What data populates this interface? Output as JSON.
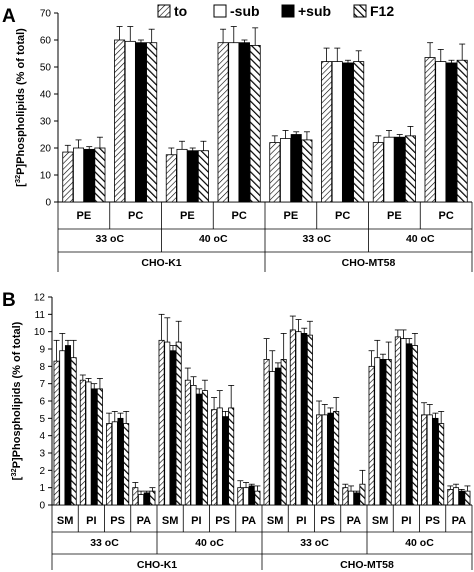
{
  "legend": {
    "position": "top",
    "entries": [
      {
        "label": "to",
        "pattern": "hatch"
      },
      {
        "label": "-sub",
        "pattern": "white"
      },
      {
        "label": "+sub",
        "pattern": "black"
      },
      {
        "label": "F12",
        "pattern": "hatch-bold"
      }
    ]
  },
  "colors": {
    "black": "#000000",
    "white": "#ffffff",
    "hatch": "#000000"
  },
  "chart_data": [
    {
      "panel": "A",
      "type": "bar",
      "ylabel_main": "Phospholipids (% of total)",
      "ylabel_bracket": "[",
      "ylabel_sup": "32",
      "ylabel_p": "P]",
      "ylim": [
        0,
        70
      ],
      "yticks": [
        "0",
        "10",
        "20",
        "30",
        "40",
        "50",
        "60",
        "70"
      ],
      "grid": false,
      "series": [
        {
          "name": "to",
          "values": [
            18.5,
            60,
            17.5,
            59,
            22,
            52,
            22,
            53.5
          ],
          "errors": [
            2.5,
            5,
            2.5,
            5,
            2.5,
            5,
            2.5,
            5.5
          ]
        },
        {
          "name": "-sub",
          "values": [
            20,
            59.5,
            19.5,
            59,
            23.5,
            52,
            24,
            52
          ],
          "errors": [
            3,
            5.5,
            3,
            6,
            3,
            5,
            2.5,
            4.5
          ]
        },
        {
          "name": "+sub",
          "values": [
            19.5,
            59,
            19,
            59,
            25,
            51.5,
            24,
            51.5
          ],
          "errors": [
            1,
            1,
            1,
            1,
            1,
            1,
            1,
            1
          ]
        },
        {
          "name": "F12",
          "values": [
            20,
            59,
            19,
            58,
            23,
            52,
            24.5,
            52.5
          ],
          "errors": [
            4,
            5,
            3.5,
            6.5,
            3,
            4,
            3.5,
            6
          ]
        }
      ],
      "categories": [
        "PE",
        "PC",
        "PE",
        "PC",
        "PE",
        "PC",
        "PE",
        "PC"
      ],
      "temperature_groups": [
        "33 oC",
        "40 oC",
        "33 oC",
        "40 oC"
      ],
      "cell_groups": [
        "CHO-K1",
        "CHO-MT58"
      ]
    },
    {
      "panel": "B",
      "type": "bar",
      "ylabel_main": "Phospholipids (% of total)",
      "ylabel_bracket": "[",
      "ylabel_sup": "32",
      "ylabel_p": "P]",
      "ylim": [
        0,
        12
      ],
      "yticks": [
        "0",
        "1",
        "2",
        "3",
        "4",
        "5",
        "6",
        "7",
        "8",
        "9",
        "10",
        "11",
        "12"
      ],
      "grid": false,
      "series": [
        {
          "name": "to",
          "values": [
            8.3,
            7.2,
            4.7,
            1.0,
            9.5,
            7.2,
            5.5,
            1.0,
            8.4,
            10.1,
            5.2,
            1.0,
            8.0,
            9.7,
            5.2,
            0.9
          ],
          "errors": [
            1.2,
            0.3,
            0.6,
            0.3,
            1.5,
            0.7,
            0.7,
            0.4,
            1.2,
            0.8,
            0.8,
            0.2,
            0.9,
            0.4,
            0.7,
            0.2
          ]
        },
        {
          "name": "-sub",
          "values": [
            8.9,
            7.1,
            4.8,
            0.6,
            9.4,
            6.9,
            5.6,
            1.0,
            7.7,
            10.0,
            5.2,
            0.8,
            8.5,
            9.6,
            5.2,
            1.0
          ],
          "errors": [
            1.0,
            0.2,
            0.6,
            0.2,
            1.4,
            0.5,
            1.0,
            0.3,
            1.2,
            0.7,
            0.6,
            0.3,
            1.0,
            0.5,
            0.6,
            0.2
          ]
        },
        {
          "name": "+sub",
          "values": [
            9.2,
            6.7,
            5.0,
            0.7,
            8.9,
            6.4,
            5.1,
            1.1,
            7.9,
            9.9,
            5.3,
            0.7,
            8.4,
            9.3,
            5.0,
            0.8
          ],
          "errors": [
            0.3,
            0.3,
            0.3,
            0.1,
            0.3,
            0.3,
            0.3,
            0.1,
            0.3,
            0.3,
            0.3,
            0.1,
            0.3,
            0.3,
            0.3,
            0.1
          ]
        },
        {
          "name": "F12",
          "values": [
            8.5,
            6.7,
            4.7,
            0.8,
            9.4,
            6.6,
            5.6,
            0.8,
            8.4,
            9.8,
            5.4,
            1.2,
            8.4,
            9.2,
            4.7,
            0.8
          ],
          "errors": [
            1.0,
            0.6,
            0.7,
            0.2,
            1.2,
            0.6,
            1.3,
            0.3,
            1.5,
            0.8,
            0.8,
            0.8,
            1.0,
            0.7,
            0.7,
            0.3
          ]
        }
      ],
      "categories": [
        "SM",
        "PI",
        "PS",
        "PA",
        "SM",
        "PI",
        "PS",
        "PA",
        "SM",
        "PI",
        "PS",
        "PA",
        "SM",
        "PI",
        "PS",
        "PA"
      ],
      "temperature_groups": [
        "33 oC",
        "40 oC",
        "33 oC",
        "40 oC"
      ],
      "cell_groups": [
        "CHO-K1",
        "CHO-MT58"
      ]
    }
  ]
}
